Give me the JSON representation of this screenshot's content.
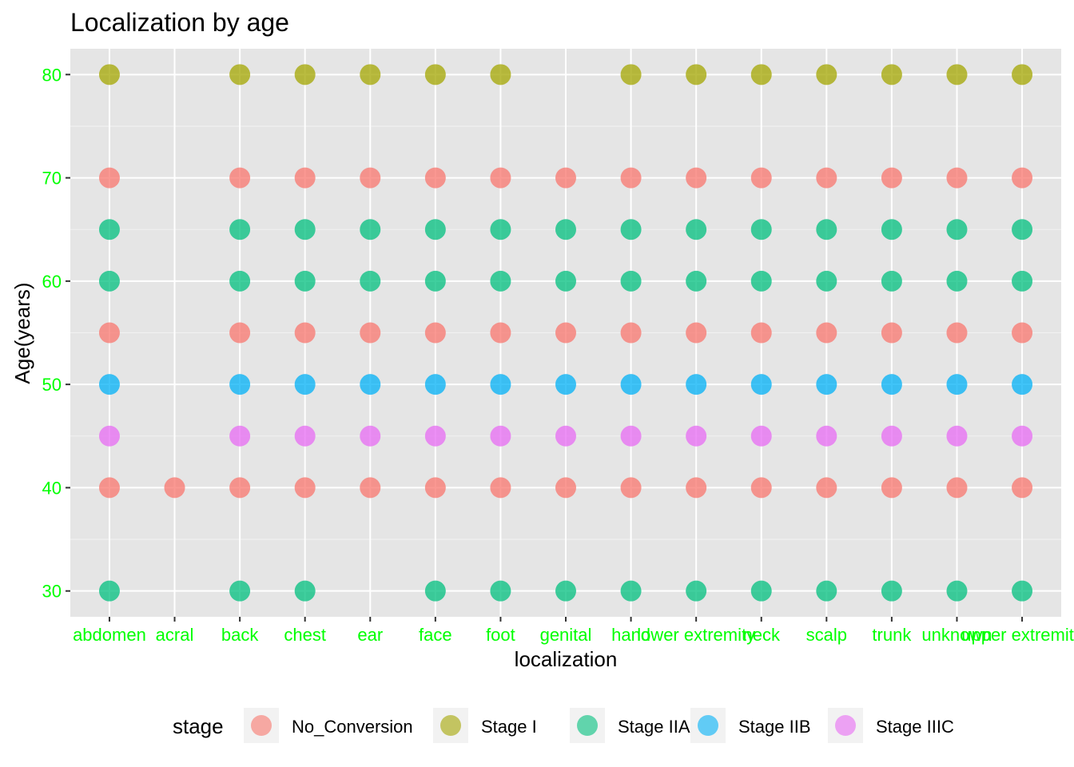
{
  "chart_data": {
    "type": "scatter",
    "title": "Localization by age",
    "xlabel": "localization",
    "ylabel": "Age(years)",
    "categories": [
      "abdomen",
      "acral",
      "back",
      "chest",
      "ear",
      "face",
      "foot",
      "genital",
      "hand",
      "lower extremity",
      "neck",
      "scalp",
      "trunk",
      "unknown",
      "upper extremity"
    ],
    "y_ticks": [
      30,
      40,
      50,
      60,
      70,
      80
    ],
    "ylim": [
      27.5,
      82.5
    ],
    "grid": true,
    "legend_position": "bottom",
    "legend_title": "stage",
    "colors": {
      "No_Conversion": "#F8766D",
      "Stage I": "#A3A500",
      "Stage IIA": "#00BF7D",
      "Stage IIB": "#00B0F6",
      "Stage IIIC": "#E76BF3",
      "panel_background": "#E5E5E5",
      "tick_label": "#00FF00"
    },
    "series": [
      {
        "name": "No_Conversion",
        "points": [
          [
            "abdomen",
            70
          ],
          [
            "abdomen",
            55
          ],
          [
            "abdomen",
            40
          ],
          [
            "acral",
            40
          ],
          [
            "back",
            70
          ],
          [
            "back",
            55
          ],
          [
            "back",
            40
          ],
          [
            "chest",
            70
          ],
          [
            "chest",
            55
          ],
          [
            "chest",
            40
          ],
          [
            "ear",
            70
          ],
          [
            "ear",
            55
          ],
          [
            "ear",
            40
          ],
          [
            "face",
            70
          ],
          [
            "face",
            55
          ],
          [
            "face",
            40
          ],
          [
            "foot",
            70
          ],
          [
            "foot",
            55
          ],
          [
            "foot",
            40
          ],
          [
            "genital",
            70
          ],
          [
            "genital",
            55
          ],
          [
            "genital",
            40
          ],
          [
            "hand",
            70
          ],
          [
            "hand",
            55
          ],
          [
            "hand",
            40
          ],
          [
            "lower extremity",
            70
          ],
          [
            "lower extremity",
            55
          ],
          [
            "lower extremity",
            40
          ],
          [
            "neck",
            70
          ],
          [
            "neck",
            55
          ],
          [
            "neck",
            40
          ],
          [
            "scalp",
            70
          ],
          [
            "scalp",
            55
          ],
          [
            "scalp",
            40
          ],
          [
            "trunk",
            70
          ],
          [
            "trunk",
            55
          ],
          [
            "trunk",
            40
          ],
          [
            "unknown",
            70
          ],
          [
            "unknown",
            55
          ],
          [
            "unknown",
            40
          ],
          [
            "upper extremity",
            70
          ],
          [
            "upper extremity",
            55
          ],
          [
            "upper extremity",
            40
          ]
        ]
      },
      {
        "name": "Stage I",
        "points": [
          [
            "abdomen",
            80
          ],
          [
            "back",
            80
          ],
          [
            "chest",
            80
          ],
          [
            "ear",
            80
          ],
          [
            "face",
            80
          ],
          [
            "foot",
            80
          ],
          [
            "hand",
            80
          ],
          [
            "lower extremity",
            80
          ],
          [
            "neck",
            80
          ],
          [
            "scalp",
            80
          ],
          [
            "trunk",
            80
          ],
          [
            "unknown",
            80
          ],
          [
            "upper extremity",
            80
          ]
        ]
      },
      {
        "name": "Stage IIA",
        "points": [
          [
            "abdomen",
            65
          ],
          [
            "abdomen",
            60
          ],
          [
            "abdomen",
            30
          ],
          [
            "back",
            65
          ],
          [
            "back",
            60
          ],
          [
            "back",
            30
          ],
          [
            "chest",
            65
          ],
          [
            "chest",
            60
          ],
          [
            "chest",
            30
          ],
          [
            "ear",
            65
          ],
          [
            "ear",
            60
          ],
          [
            "face",
            65
          ],
          [
            "face",
            60
          ],
          [
            "face",
            30
          ],
          [
            "foot",
            65
          ],
          [
            "foot",
            60
          ],
          [
            "foot",
            30
          ],
          [
            "genital",
            65
          ],
          [
            "genital",
            60
          ],
          [
            "genital",
            30
          ],
          [
            "hand",
            65
          ],
          [
            "hand",
            60
          ],
          [
            "hand",
            30
          ],
          [
            "lower extremity",
            65
          ],
          [
            "lower extremity",
            60
          ],
          [
            "lower extremity",
            30
          ],
          [
            "neck",
            65
          ],
          [
            "neck",
            60
          ],
          [
            "neck",
            30
          ],
          [
            "scalp",
            65
          ],
          [
            "scalp",
            60
          ],
          [
            "scalp",
            30
          ],
          [
            "trunk",
            65
          ],
          [
            "trunk",
            60
          ],
          [
            "trunk",
            30
          ],
          [
            "unknown",
            65
          ],
          [
            "unknown",
            60
          ],
          [
            "unknown",
            30
          ],
          [
            "upper extremity",
            65
          ],
          [
            "upper extremity",
            60
          ],
          [
            "upper extremity",
            30
          ]
        ]
      },
      {
        "name": "Stage IIB",
        "points": [
          [
            "abdomen",
            50
          ],
          [
            "back",
            50
          ],
          [
            "chest",
            50
          ],
          [
            "ear",
            50
          ],
          [
            "face",
            50
          ],
          [
            "foot",
            50
          ],
          [
            "genital",
            50
          ],
          [
            "hand",
            50
          ],
          [
            "lower extremity",
            50
          ],
          [
            "neck",
            50
          ],
          [
            "scalp",
            50
          ],
          [
            "trunk",
            50
          ],
          [
            "unknown",
            50
          ],
          [
            "upper extremity",
            50
          ]
        ]
      },
      {
        "name": "Stage IIIC",
        "points": [
          [
            "abdomen",
            45
          ],
          [
            "back",
            45
          ],
          [
            "chest",
            45
          ],
          [
            "ear",
            45
          ],
          [
            "face",
            45
          ],
          [
            "foot",
            45
          ],
          [
            "genital",
            45
          ],
          [
            "hand",
            45
          ],
          [
            "lower extremity",
            45
          ],
          [
            "neck",
            45
          ],
          [
            "scalp",
            45
          ],
          [
            "trunk",
            45
          ],
          [
            "unknown",
            45
          ],
          [
            "upper extremity",
            45
          ]
        ]
      }
    ]
  }
}
